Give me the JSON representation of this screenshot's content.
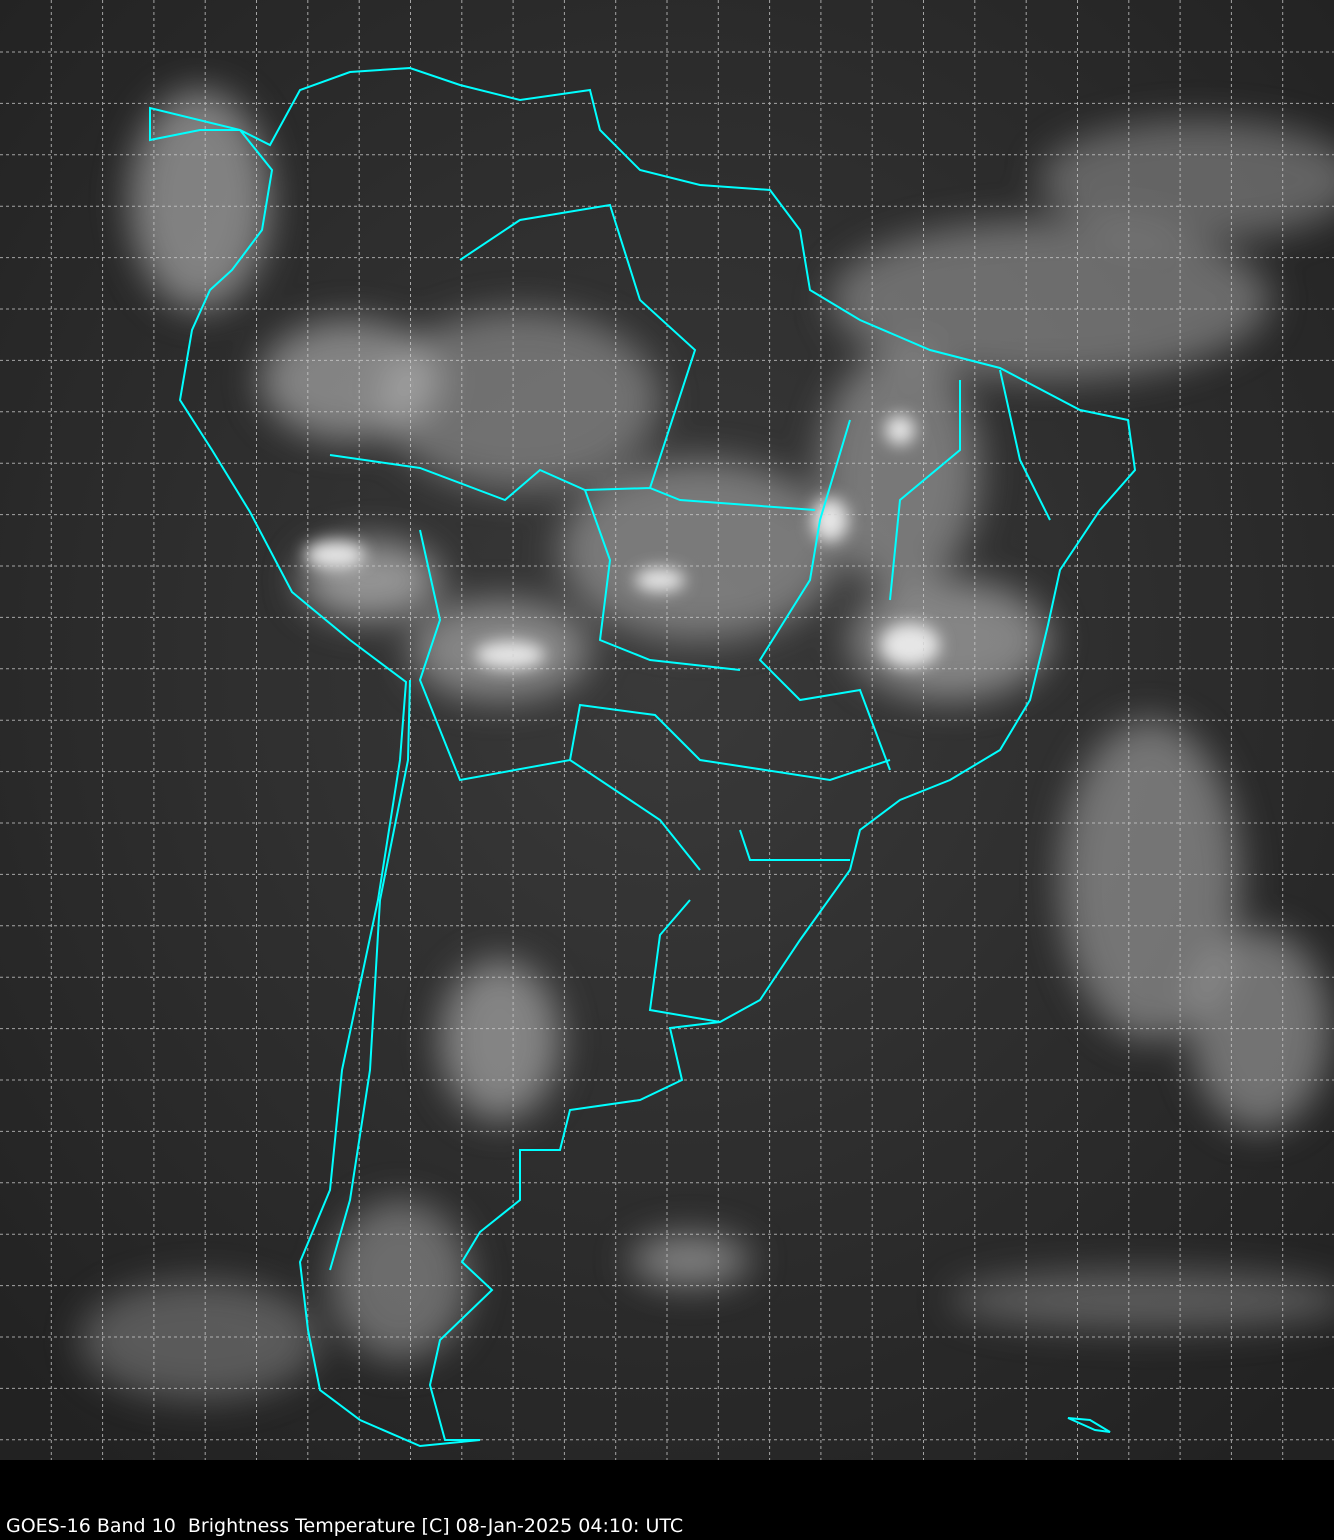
{
  "caption": "GOES-16 Band 10  Brightness Temperature [C] 08-Jan-2025 04:10: UTC",
  "colors": {
    "background": "#000000",
    "ocean": "#2a2a2a",
    "cloud": "#d8d8d8",
    "borders": "#00ffff",
    "grid": "#cfcfcf"
  },
  "grid": {
    "style": "dashed",
    "visible": true
  },
  "region": "South America"
}
